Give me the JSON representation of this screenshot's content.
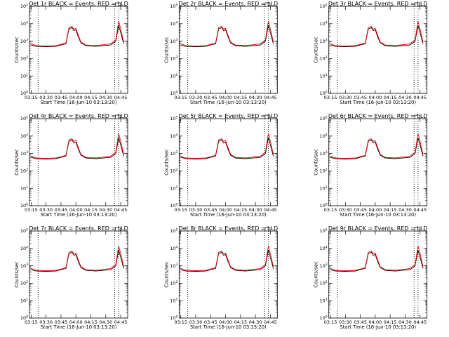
{
  "colors": {
    "events": "#000000",
    "lld": "#ff0000",
    "background": "#ffffff"
  },
  "chart_data": [
    {
      "type": "line",
      "title": "Det 1r BLACK = Events, RED = LLD",
      "xlabel": "Start Time (16-Jun-10 03:13:20)",
      "ylabel": "Counts/sec",
      "yscale": "log",
      "ylim": [
        1,
        100000
      ],
      "xlim": [
        "03:13:20",
        "04:52:00"
      ],
      "xticks": [
        "03:15",
        "03:30",
        "03:45",
        "04:00",
        "04:15",
        "04:30",
        "04:45"
      ],
      "vlines": [
        "03:22",
        "04:39",
        "04:43"
      ],
      "yticks": [
        "10^0",
        "10^1",
        "10^2",
        "10^3",
        "10^4",
        "10^5"
      ],
      "x": [
        "03:15",
        "03:20",
        "03:30",
        "03:40",
        "03:45",
        "03:50",
        "03:53",
        "03:56",
        "03:58",
        "04:00",
        "04:02",
        "04:05",
        "04:10",
        "04:20",
        "04:35",
        "04:40",
        "04:43",
        "04:45",
        "04:48"
      ],
      "series": [
        {
          "name": "Events",
          "values": [
            600,
            500,
            480,
            500,
            600,
            700,
            5000,
            6000,
            4000,
            4500,
            2000,
            800,
            550,
            500,
            600,
            1000,
            8000,
            3000,
            700
          ]
        },
        {
          "name": "LLD",
          "values": [
            700,
            550,
            520,
            550,
            650,
            800,
            6000,
            7000,
            5000,
            5500,
            2500,
            900,
            600,
            550,
            700,
            1200,
            14000,
            5000,
            900
          ]
        }
      ]
    },
    {
      "type": "line",
      "title": "Det 2r BLACK = Events, RED = LLD",
      "xlabel": "Start Time (16-Jun-10 03:13:20)",
      "ylabel": "Counts/sec",
      "yscale": "log",
      "ylim": [
        1,
        100000
      ],
      "xlim": [
        "03:13:20",
        "04:52:00"
      ],
      "xticks": [
        "03:15",
        "03:30",
        "03:45",
        "04:00",
        "04:15",
        "04:30",
        "04:45"
      ],
      "vlines": [
        "03:22",
        "04:39",
        "04:43"
      ],
      "yticks": [
        "10^0",
        "10^1",
        "10^2",
        "10^3",
        "10^4",
        "10^5"
      ],
      "x": [
        "03:15",
        "03:20",
        "03:30",
        "03:40",
        "03:45",
        "03:50",
        "03:53",
        "03:56",
        "03:58",
        "04:00",
        "04:02",
        "04:05",
        "04:10",
        "04:20",
        "04:35",
        "04:40",
        "04:43",
        "04:45",
        "04:48"
      ],
      "series": [
        {
          "name": "Events",
          "values": [
            600,
            500,
            480,
            500,
            600,
            700,
            5000,
            6000,
            4000,
            4500,
            2000,
            800,
            550,
            500,
            600,
            1000,
            8000,
            3000,
            700
          ]
        },
        {
          "name": "LLD",
          "values": [
            700,
            550,
            520,
            550,
            650,
            800,
            6000,
            7000,
            5000,
            5500,
            2500,
            900,
            600,
            550,
            700,
            1200,
            14000,
            5000,
            900
          ]
        }
      ]
    },
    {
      "type": "line",
      "title": "Det 3r BLACK = Events, RED = LLD",
      "xlabel": "Start Time (16-Jun-10 03:13:20)",
      "ylabel": "Counts/sec",
      "yscale": "log",
      "ylim": [
        1,
        100000
      ],
      "xlim": [
        "03:13:20",
        "04:52:00"
      ],
      "xticks": [
        "03:15",
        "03:30",
        "03:45",
        "04:00",
        "04:15",
        "04:30",
        "04:45"
      ],
      "vlines": [
        "03:22",
        "04:39",
        "04:43"
      ],
      "yticks": [
        "10^0",
        "10^1",
        "10^2",
        "10^3",
        "10^4",
        "10^5"
      ],
      "x": [
        "03:15",
        "03:20",
        "03:30",
        "03:40",
        "03:45",
        "03:50",
        "03:53",
        "03:56",
        "03:58",
        "04:00",
        "04:02",
        "04:05",
        "04:10",
        "04:20",
        "04:35",
        "04:40",
        "04:43",
        "04:45",
        "04:48"
      ],
      "series": [
        {
          "name": "Events",
          "values": [
            600,
            500,
            480,
            500,
            600,
            700,
            5000,
            6000,
            4000,
            4500,
            2000,
            800,
            550,
            500,
            600,
            1000,
            8000,
            3000,
            700
          ]
        },
        {
          "name": "LLD",
          "values": [
            700,
            550,
            520,
            550,
            650,
            800,
            6000,
            7000,
            5000,
            5500,
            2500,
            900,
            600,
            550,
            700,
            1200,
            14000,
            5000,
            900
          ]
        }
      ]
    },
    {
      "type": "line",
      "title": "Det 4r BLACK = Events, RED = LLD",
      "xlabel": "Start Time (16-Jun-10 03:13:20)",
      "ylabel": "Counts/sec",
      "yscale": "log",
      "ylim": [
        1,
        100000
      ],
      "xlim": [
        "03:13:20",
        "04:52:00"
      ],
      "xticks": [
        "03:15",
        "03:30",
        "03:45",
        "04:00",
        "04:15",
        "04:30",
        "04:45"
      ],
      "vlines": [
        "03:22",
        "04:39",
        "04:43"
      ],
      "yticks": [
        "10^0",
        "10^1",
        "10^2",
        "10^3",
        "10^4",
        "10^5"
      ],
      "x": [
        "03:15",
        "03:20",
        "03:30",
        "03:40",
        "03:45",
        "03:50",
        "03:53",
        "03:56",
        "03:58",
        "04:00",
        "04:02",
        "04:05",
        "04:10",
        "04:20",
        "04:35",
        "04:40",
        "04:43",
        "04:45",
        "04:48"
      ],
      "series": [
        {
          "name": "Events",
          "values": [
            600,
            500,
            480,
            500,
            600,
            700,
            5000,
            6000,
            4000,
            4500,
            2000,
            800,
            550,
            500,
            600,
            1000,
            8000,
            3000,
            700
          ]
        },
        {
          "name": "LLD",
          "values": [
            700,
            550,
            520,
            550,
            650,
            800,
            6000,
            7000,
            5000,
            5500,
            2500,
            900,
            600,
            550,
            700,
            1200,
            14000,
            5000,
            900
          ]
        }
      ]
    },
    {
      "type": "line",
      "title": "Det 5r BLACK = Events, RED = LLD",
      "xlabel": "Start Time (16-Jun-10 03:13:20)",
      "ylabel": "Counts/sec",
      "yscale": "log",
      "ylim": [
        1,
        100000
      ],
      "xlim": [
        "03:13:20",
        "04:52:00"
      ],
      "xticks": [
        "03:15",
        "03:30",
        "03:45",
        "04:00",
        "04:15",
        "04:30",
        "04:45"
      ],
      "vlines": [
        "03:22",
        "04:39",
        "04:43"
      ],
      "yticks": [
        "10^0",
        "10^1",
        "10^2",
        "10^3",
        "10^4",
        "10^5"
      ],
      "x": [
        "03:15",
        "03:20",
        "03:30",
        "03:40",
        "03:45",
        "03:50",
        "03:53",
        "03:56",
        "03:58",
        "04:00",
        "04:02",
        "04:05",
        "04:10",
        "04:20",
        "04:35",
        "04:40",
        "04:43",
        "04:45",
        "04:48"
      ],
      "series": [
        {
          "name": "Events",
          "values": [
            600,
            500,
            480,
            500,
            600,
            700,
            5000,
            6000,
            4000,
            4500,
            2000,
            800,
            550,
            500,
            600,
            1000,
            8000,
            3000,
            700
          ]
        },
        {
          "name": "LLD",
          "values": [
            700,
            550,
            520,
            550,
            650,
            800,
            6000,
            7000,
            5000,
            5500,
            2500,
            900,
            600,
            550,
            700,
            1200,
            14000,
            5000,
            900
          ]
        }
      ]
    },
    {
      "type": "line",
      "title": "Det 6r BLACK = Events, RED = LLD",
      "xlabel": "Start Time (16-Jun-10 03:13:20)",
      "ylabel": "Counts/sec",
      "yscale": "log",
      "ylim": [
        1,
        100000
      ],
      "xlim": [
        "03:13:20",
        "04:52:00"
      ],
      "xticks": [
        "03:15",
        "03:30",
        "03:45",
        "04:00",
        "04:15",
        "04:30",
        "04:45"
      ],
      "vlines": [
        "03:22",
        "04:39",
        "04:43"
      ],
      "yticks": [
        "10^0",
        "10^1",
        "10^2",
        "10^3",
        "10^4",
        "10^5"
      ],
      "x": [
        "03:15",
        "03:20",
        "03:30",
        "03:40",
        "03:45",
        "03:50",
        "03:53",
        "03:56",
        "03:58",
        "04:00",
        "04:02",
        "04:05",
        "04:10",
        "04:20",
        "04:35",
        "04:40",
        "04:43",
        "04:45",
        "04:48"
      ],
      "series": [
        {
          "name": "Events",
          "values": [
            600,
            500,
            480,
            500,
            600,
            700,
            5000,
            6000,
            4000,
            4500,
            2000,
            800,
            550,
            500,
            600,
            1000,
            8000,
            3000,
            700
          ]
        },
        {
          "name": "LLD",
          "values": [
            700,
            550,
            520,
            550,
            650,
            800,
            6000,
            7000,
            5000,
            5500,
            2500,
            900,
            600,
            550,
            700,
            1200,
            14000,
            5000,
            900
          ]
        }
      ]
    },
    {
      "type": "line",
      "title": "Det 7r BLACK = Events, RED = LLD",
      "xlabel": "Start Time (16-Jun-10 03:13:20)",
      "ylabel": "Counts/sec",
      "yscale": "log",
      "ylim": [
        1,
        100000
      ],
      "xlim": [
        "03:13:20",
        "04:52:00"
      ],
      "xticks": [
        "03:15",
        "03:30",
        "03:45",
        "04:00",
        "04:15",
        "04:30",
        "04:45"
      ],
      "vlines": [
        "03:22",
        "04:39",
        "04:43"
      ],
      "yticks": [
        "10^0",
        "10^1",
        "10^2",
        "10^3",
        "10^4",
        "10^5"
      ],
      "x": [
        "03:15",
        "03:20",
        "03:30",
        "03:40",
        "03:45",
        "03:50",
        "03:53",
        "03:56",
        "03:58",
        "04:00",
        "04:02",
        "04:05",
        "04:10",
        "04:20",
        "04:35",
        "04:40",
        "04:43",
        "04:45",
        "04:48"
      ],
      "series": [
        {
          "name": "Events",
          "values": [
            600,
            500,
            480,
            500,
            600,
            700,
            5000,
            6000,
            4000,
            4500,
            2000,
            800,
            550,
            500,
            600,
            1000,
            8000,
            3000,
            700
          ]
        },
        {
          "name": "LLD",
          "values": [
            700,
            550,
            520,
            550,
            650,
            800,
            6000,
            7000,
            5000,
            5500,
            2500,
            900,
            600,
            550,
            700,
            1200,
            14000,
            5000,
            900
          ]
        }
      ]
    },
    {
      "type": "line",
      "title": "Det 8r BLACK = Events, RED = LLD",
      "xlabel": "Start Time (16-Jun-10 03:13:20)",
      "ylabel": "Counts/sec",
      "yscale": "log",
      "ylim": [
        1,
        100000
      ],
      "xlim": [
        "03:13:20",
        "04:52:00"
      ],
      "xticks": [
        "03:15",
        "03:30",
        "03:45",
        "04:00",
        "04:15",
        "04:30",
        "04:45"
      ],
      "vlines": [
        "03:22",
        "04:39",
        "04:43"
      ],
      "yticks": [
        "10^0",
        "10^1",
        "10^2",
        "10^3",
        "10^4",
        "10^5"
      ],
      "x": [
        "03:15",
        "03:20",
        "03:30",
        "03:40",
        "03:45",
        "03:50",
        "03:53",
        "03:56",
        "03:58",
        "04:00",
        "04:02",
        "04:05",
        "04:10",
        "04:20",
        "04:35",
        "04:40",
        "04:43",
        "04:45",
        "04:48"
      ],
      "series": [
        {
          "name": "Events",
          "values": [
            600,
            500,
            480,
            500,
            600,
            700,
            5000,
            6000,
            4000,
            4500,
            2000,
            800,
            550,
            500,
            600,
            1000,
            8000,
            3000,
            700
          ]
        },
        {
          "name": "LLD",
          "values": [
            700,
            550,
            520,
            550,
            650,
            800,
            6000,
            7000,
            5000,
            5500,
            2500,
            900,
            600,
            550,
            700,
            1200,
            14000,
            5000,
            900
          ]
        }
      ]
    },
    {
      "type": "line",
      "title": "Det 9r BLACK = Events, RED = LLD",
      "xlabel": "Start Time (16-Jun-10 03:13:20)",
      "ylabel": "Counts/sec",
      "yscale": "log",
      "ylim": [
        1,
        100000
      ],
      "xlim": [
        "03:13:20",
        "04:52:00"
      ],
      "xticks": [
        "03:15",
        "03:30",
        "03:45",
        "04:00",
        "04:15",
        "04:30",
        "04:45"
      ],
      "vlines": [
        "03:22",
        "04:39",
        "04:43"
      ],
      "yticks": [
        "10^0",
        "10^1",
        "10^2",
        "10^3",
        "10^4",
        "10^5"
      ],
      "x": [
        "03:15",
        "03:20",
        "03:30",
        "03:40",
        "03:45",
        "03:50",
        "03:53",
        "03:56",
        "03:58",
        "04:00",
        "04:02",
        "04:05",
        "04:10",
        "04:20",
        "04:35",
        "04:40",
        "04:43",
        "04:45",
        "04:48"
      ],
      "series": [
        {
          "name": "Events",
          "values": [
            600,
            500,
            480,
            500,
            600,
            700,
            5000,
            6000,
            4000,
            4500,
            2000,
            800,
            550,
            500,
            600,
            1000,
            8000,
            3000,
            700
          ]
        },
        {
          "name": "LLD",
          "values": [
            700,
            550,
            520,
            550,
            650,
            800,
            6000,
            7000,
            5000,
            5500,
            2500,
            900,
            600,
            550,
            700,
            1200,
            14000,
            5000,
            900
          ]
        }
      ]
    }
  ]
}
